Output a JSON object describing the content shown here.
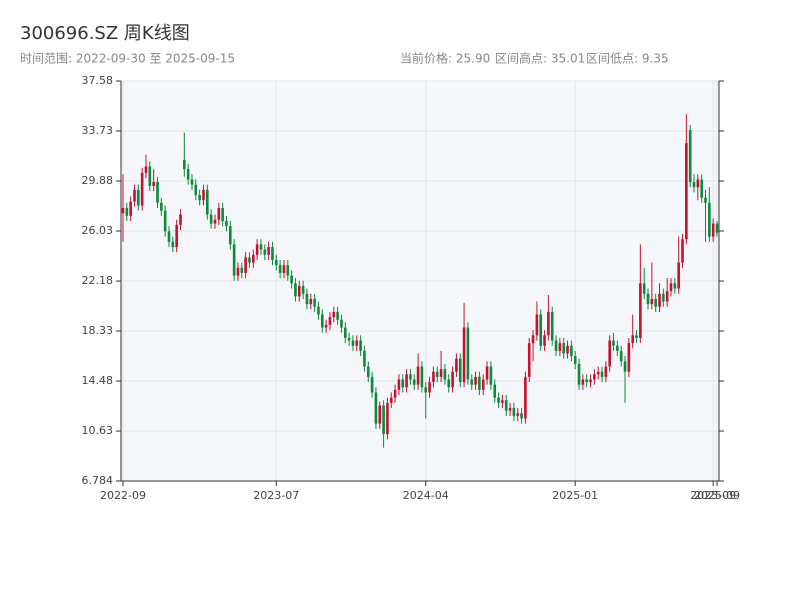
{
  "chart_data": {
    "type": "candlestick",
    "title": "300696.SZ 周K线图",
    "subtitle": "时间范围: 2022-09-30 至 2025-09-15",
    "stats": [
      "当前价格: 25.90",
      "区间高点: 35.01",
      "区间低点: 9.35"
    ],
    "up_color": "#c8102e",
    "down_color": "#0a8a3a",
    "background": "#f5f7fa",
    "grid": true,
    "ylim": [
      6.784,
      37.58
    ],
    "yticks": [
      6.784,
      10.63,
      14.48,
      18.33,
      22.18,
      26.03,
      29.88,
      33.73,
      37.58
    ],
    "xticks": [
      {
        "value": "2022-09-30",
        "label": "2022-09"
      },
      {
        "value": "2023-07-07",
        "label": "2023-07"
      },
      {
        "value": "2024-04-05",
        "label": "2024-04"
      },
      {
        "value": "2025-01-03",
        "label": "2025-01"
      },
      {
        "value": "2025-09-12",
        "label": "2025-09"
      },
      {
        "value": "2025-09-15",
        "label": "2025-09"
      }
    ],
    "categories": [
      "2022-09-30",
      "2022-10-07",
      "2022-10-14",
      "2022-10-21",
      "2022-10-28",
      "2022-11-04",
      "2022-11-11",
      "2022-11-18",
      "2022-11-25",
      "2022-12-02",
      "2022-12-09",
      "2022-12-16",
      "2022-12-23",
      "2022-12-30",
      "2023-01-06",
      "2023-01-13",
      "2023-01-20",
      "2023-01-27",
      "2023-02-03",
      "2023-02-10",
      "2023-02-17",
      "2023-02-24",
      "2023-03-03",
      "2023-03-10",
      "2023-03-17",
      "2023-03-24",
      "2023-03-31",
      "2023-04-07",
      "2023-04-14",
      "2023-04-21",
      "2023-04-28",
      "2023-05-05",
      "2023-05-12",
      "2023-05-19",
      "2023-05-26",
      "2023-06-02",
      "2023-06-09",
      "2023-06-16",
      "2023-06-23",
      "2023-06-30",
      "2023-07-07",
      "2023-07-14",
      "2023-07-21",
      "2023-07-28",
      "2023-08-04",
      "2023-08-11",
      "2023-08-18",
      "2023-08-25",
      "2023-09-01",
      "2023-09-08",
      "2023-09-15",
      "2023-09-22",
      "2023-09-29",
      "2023-10-06",
      "2023-10-13",
      "2023-10-20",
      "2023-10-27",
      "2023-11-03",
      "2023-11-10",
      "2023-11-17",
      "2023-11-24",
      "2023-12-01",
      "2023-12-08",
      "2023-12-15",
      "2023-12-22",
      "2023-12-29",
      "2024-01-05",
      "2024-01-12",
      "2024-01-19",
      "2024-01-26",
      "2024-02-02",
      "2024-02-09",
      "2024-02-16",
      "2024-02-23",
      "2024-03-01",
      "2024-03-08",
      "2024-03-15",
      "2024-03-22",
      "2024-03-29",
      "2024-04-05",
      "2024-04-12",
      "2024-04-19",
      "2024-04-26",
      "2024-05-03",
      "2024-05-10",
      "2024-05-17",
      "2024-05-24",
      "2024-05-31",
      "2024-06-07",
      "2024-06-14",
      "2024-06-21",
      "2024-06-28",
      "2024-07-05",
      "2024-07-12",
      "2024-07-19",
      "2024-07-26",
      "2024-08-02",
      "2024-08-09",
      "2024-08-16",
      "2024-08-23",
      "2024-08-30",
      "2024-09-06",
      "2024-09-13",
      "2024-09-20",
      "2024-09-27",
      "2024-10-04",
      "2024-10-11",
      "2024-10-18",
      "2024-10-25",
      "2024-11-01",
      "2024-11-08",
      "2024-11-15",
      "2024-11-22",
      "2024-11-29",
      "2024-12-06",
      "2024-12-13",
      "2024-12-20",
      "2024-12-27",
      "2025-01-03",
      "2025-01-10",
      "2025-01-17",
      "2025-01-24",
      "2025-01-31",
      "2025-02-07",
      "2025-02-14",
      "2025-02-21",
      "2025-02-28",
      "2025-03-07",
      "2025-03-14",
      "2025-03-21",
      "2025-03-28",
      "2025-04-04",
      "2025-04-11",
      "2025-04-18",
      "2025-04-25",
      "2025-05-02",
      "2025-05-09",
      "2025-05-16",
      "2025-05-23",
      "2025-05-30",
      "2025-06-06",
      "2025-06-13",
      "2025-06-20",
      "2025-06-27",
      "2025-07-04",
      "2025-07-11",
      "2025-07-18",
      "2025-07-25",
      "2025-08-01",
      "2025-08-08",
      "2025-08-15",
      "2025-08-22",
      "2025-08-29",
      "2025-09-05",
      "2025-09-12",
      "2025-09-15"
    ],
    "values": [
      [
        27.4,
        30.4,
        25.2,
        27.8
      ],
      [
        27.8,
        28.2,
        26.8,
        27.2
      ],
      [
        27.2,
        28.7,
        26.8,
        28.3
      ],
      [
        28.3,
        29.6,
        27.9,
        29.2
      ],
      [
        29.2,
        29.6,
        27.6,
        28.0
      ],
      [
        28.0,
        30.9,
        27.6,
        30.5
      ],
      [
        30.5,
        31.9,
        30.1,
        31.0
      ],
      [
        31.0,
        31.4,
        29.1,
        29.5
      ],
      [
        29.5,
        30.8,
        29.1,
        29.8
      ],
      [
        29.8,
        30.2,
        27.8,
        28.2
      ],
      [
        28.2,
        28.6,
        27.2,
        27.6
      ],
      [
        27.6,
        28.0,
        25.6,
        26.0
      ],
      [
        26.0,
        26.4,
        24.8,
        25.2
      ],
      [
        25.2,
        25.6,
        24.4,
        24.8
      ],
      [
        24.8,
        26.9,
        24.4,
        26.5
      ],
      [
        26.5,
        27.7,
        26.1,
        27.3
      ],
      [
        31.5,
        33.6,
        30.2,
        30.8
      ],
      [
        30.8,
        31.2,
        29.6,
        30.0
      ],
      [
        30.0,
        30.4,
        29.2,
        29.6
      ],
      [
        29.6,
        30.0,
        28.4,
        28.8
      ],
      [
        28.8,
        29.2,
        28.0,
        28.4
      ],
      [
        28.4,
        29.6,
        28.0,
        29.2
      ],
      [
        29.2,
        29.6,
        26.9,
        27.3
      ],
      [
        27.3,
        27.7,
        26.2,
        26.6
      ],
      [
        26.6,
        27.3,
        26.2,
        26.9
      ],
      [
        26.9,
        28.2,
        26.5,
        27.8
      ],
      [
        27.8,
        28.2,
        26.4,
        26.8
      ],
      [
        26.8,
        27.2,
        26.0,
        26.4
      ],
      [
        26.4,
        26.8,
        24.6,
        25.0
      ],
      [
        25.0,
        25.4,
        22.2,
        22.6
      ],
      [
        22.6,
        23.6,
        22.2,
        23.2
      ],
      [
        23.2,
        23.6,
        22.4,
        22.8
      ],
      [
        22.8,
        24.4,
        22.4,
        24.0
      ],
      [
        24.0,
        24.4,
        23.2,
        23.6
      ],
      [
        23.6,
        24.6,
        23.2,
        24.2
      ],
      [
        24.2,
        25.4,
        23.8,
        25.0
      ],
      [
        25.0,
        25.4,
        24.2,
        24.6
      ],
      [
        24.6,
        25.0,
        23.8,
        24.2
      ],
      [
        24.2,
        25.2,
        23.8,
        24.8
      ],
      [
        24.8,
        25.2,
        23.4,
        23.8
      ],
      [
        23.8,
        24.2,
        23.0,
        23.4
      ],
      [
        23.4,
        23.8,
        22.4,
        22.8
      ],
      [
        22.8,
        23.8,
        22.4,
        23.4
      ],
      [
        23.4,
        23.8,
        22.2,
        22.6
      ],
      [
        22.6,
        23.0,
        21.6,
        22.0
      ],
      [
        22.0,
        22.4,
        20.6,
        21.0
      ],
      [
        21.0,
        22.2,
        20.6,
        21.8
      ],
      [
        21.8,
        22.2,
        20.8,
        21.2
      ],
      [
        21.2,
        21.6,
        20.0,
        20.4
      ],
      [
        20.4,
        21.2,
        20.0,
        20.8
      ],
      [
        20.8,
        21.2,
        19.8,
        20.2
      ],
      [
        20.2,
        20.6,
        19.2,
        19.6
      ],
      [
        19.6,
        20.0,
        18.2,
        18.6
      ],
      [
        18.6,
        19.2,
        18.2,
        18.8
      ],
      [
        18.8,
        19.8,
        18.4,
        19.4
      ],
      [
        19.4,
        20.2,
        19.0,
        19.8
      ],
      [
        19.8,
        20.2,
        18.8,
        19.2
      ],
      [
        19.2,
        19.6,
        18.2,
        18.6
      ],
      [
        18.6,
        19.0,
        17.4,
        17.8
      ],
      [
        17.8,
        18.2,
        17.2,
        17.6
      ],
      [
        17.6,
        18.0,
        16.8,
        17.2
      ],
      [
        17.2,
        18.0,
        16.8,
        17.6
      ],
      [
        17.6,
        18.0,
        16.4,
        16.8
      ],
      [
        16.8,
        17.2,
        15.2,
        15.6
      ],
      [
        15.6,
        16.0,
        14.4,
        14.8
      ],
      [
        14.8,
        15.2,
        13.2,
        13.6
      ],
      [
        13.6,
        14.0,
        10.8,
        11.2
      ],
      [
        11.2,
        12.9,
        10.8,
        12.6
      ],
      [
        12.6,
        13.0,
        9.35,
        10.4
      ],
      [
        10.4,
        13.2,
        10.0,
        12.8
      ],
      [
        12.8,
        13.6,
        12.4,
        13.2
      ],
      [
        13.2,
        14.2,
        12.8,
        13.8
      ],
      [
        13.8,
        15.0,
        13.4,
        14.6
      ],
      [
        14.6,
        15.0,
        13.6,
        14.0
      ],
      [
        14.0,
        15.4,
        13.6,
        15.0
      ],
      [
        15.0,
        15.4,
        14.2,
        14.6
      ],
      [
        14.6,
        15.0,
        13.8,
        14.2
      ],
      [
        14.2,
        16.6,
        13.8,
        15.6
      ],
      [
        15.6,
        16.0,
        13.6,
        14.0
      ],
      [
        14.0,
        14.4,
        11.6,
        13.6
      ],
      [
        13.6,
        14.8,
        13.2,
        14.4
      ],
      [
        14.4,
        15.6,
        14.0,
        15.2
      ],
      [
        15.2,
        15.6,
        14.4,
        14.8
      ],
      [
        14.8,
        16.8,
        14.4,
        15.4
      ],
      [
        15.4,
        15.8,
        14.2,
        14.6
      ],
      [
        14.6,
        15.0,
        13.6,
        14.0
      ],
      [
        14.0,
        15.6,
        13.6,
        15.2
      ],
      [
        15.2,
        16.6,
        14.8,
        16.2
      ],
      [
        16.2,
        16.6,
        14.0,
        14.4
      ],
      [
        14.4,
        20.5,
        14.0,
        18.6
      ],
      [
        18.6,
        19.0,
        14.2,
        14.6
      ],
      [
        14.6,
        15.0,
        13.8,
        14.2
      ],
      [
        14.2,
        15.2,
        13.8,
        14.8
      ],
      [
        14.8,
        15.2,
        13.4,
        13.8
      ],
      [
        13.8,
        15.0,
        13.4,
        14.6
      ],
      [
        14.6,
        16.0,
        14.2,
        15.6
      ],
      [
        15.6,
        16.0,
        13.8,
        14.2
      ],
      [
        14.2,
        14.6,
        12.8,
        13.2
      ],
      [
        13.2,
        13.6,
        12.4,
        12.8
      ],
      [
        12.8,
        13.4,
        12.4,
        13.0
      ],
      [
        13.0,
        13.4,
        11.8,
        12.2
      ],
      [
        12.2,
        12.8,
        11.8,
        12.4
      ],
      [
        12.4,
        12.8,
        11.4,
        11.8
      ],
      [
        11.8,
        12.4,
        11.4,
        12.0
      ],
      [
        12.0,
        12.4,
        11.2,
        11.6
      ],
      [
        11.6,
        15.2,
        11.2,
        14.8
      ],
      [
        14.8,
        17.8,
        14.4,
        17.4
      ],
      [
        17.4,
        18.4,
        16.0,
        18.0
      ],
      [
        18.0,
        20.6,
        17.6,
        19.6
      ],
      [
        19.6,
        20.0,
        16.8,
        17.2
      ],
      [
        17.2,
        18.4,
        16.8,
        18.0
      ],
      [
        18.0,
        21.1,
        17.6,
        19.8
      ],
      [
        19.8,
        20.2,
        17.2,
        17.6
      ],
      [
        17.6,
        18.0,
        16.4,
        16.8
      ],
      [
        16.8,
        17.8,
        16.4,
        17.4
      ],
      [
        17.4,
        17.8,
        16.2,
        16.6
      ],
      [
        16.6,
        17.6,
        16.2,
        17.2
      ],
      [
        17.2,
        17.6,
        16.0,
        16.4
      ],
      [
        16.4,
        16.8,
        15.4,
        15.8
      ],
      [
        15.8,
        16.2,
        13.8,
        14.2
      ],
      [
        14.2,
        15.0,
        13.8,
        14.6
      ],
      [
        14.6,
        15.0,
        14.0,
        14.4
      ],
      [
        14.4,
        15.0,
        14.0,
        14.6
      ],
      [
        14.6,
        15.4,
        14.2,
        15.0
      ],
      [
        15.0,
        15.6,
        14.6,
        15.2
      ],
      [
        15.2,
        15.6,
        14.4,
        14.8
      ],
      [
        14.8,
        16.0,
        14.4,
        15.6
      ],
      [
        15.6,
        18.0,
        15.2,
        17.6
      ],
      [
        17.6,
        18.2,
        16.8,
        17.2
      ],
      [
        17.2,
        17.6,
        16.4,
        16.8
      ],
      [
        16.8,
        17.2,
        15.6,
        16.0
      ],
      [
        16.0,
        16.4,
        12.8,
        15.2
      ],
      [
        15.2,
        17.8,
        14.8,
        17.4
      ],
      [
        17.4,
        19.6,
        17.0,
        18.0
      ],
      [
        18.0,
        18.4,
        17.4,
        17.8
      ],
      [
        17.8,
        25.0,
        17.4,
        22.0
      ],
      [
        22.0,
        23.2,
        20.8,
        21.2
      ],
      [
        21.2,
        21.6,
        20.0,
        20.4
      ],
      [
        20.4,
        23.6,
        20.0,
        20.8
      ],
      [
        20.8,
        21.2,
        19.8,
        20.2
      ],
      [
        20.2,
        22.0,
        19.8,
        21.2
      ],
      [
        21.2,
        21.6,
        20.2,
        20.6
      ],
      [
        20.6,
        22.4,
        20.2,
        21.4
      ],
      [
        21.4,
        22.4,
        21.0,
        22.0
      ],
      [
        22.0,
        22.4,
        21.2,
        21.6
      ],
      [
        21.6,
        25.6,
        21.2,
        23.6
      ],
      [
        23.6,
        25.8,
        23.2,
        25.4
      ],
      [
        25.4,
        35.01,
        25.0,
        32.8
      ],
      [
        33.8,
        34.2,
        29.4,
        29.8
      ],
      [
        29.8,
        30.4,
        29.0,
        29.4
      ],
      [
        29.4,
        30.4,
        28.4,
        30.0
      ],
      [
        30.0,
        30.4,
        28.2,
        28.6
      ],
      [
        28.6,
        29.2,
        25.2,
        28.2
      ],
      [
        28.2,
        29.4,
        25.2,
        25.6
      ],
      [
        25.6,
        27.0,
        25.2,
        26.6
      ],
      [
        26.6,
        26.8,
        25.6,
        25.9
      ]
    ]
  }
}
